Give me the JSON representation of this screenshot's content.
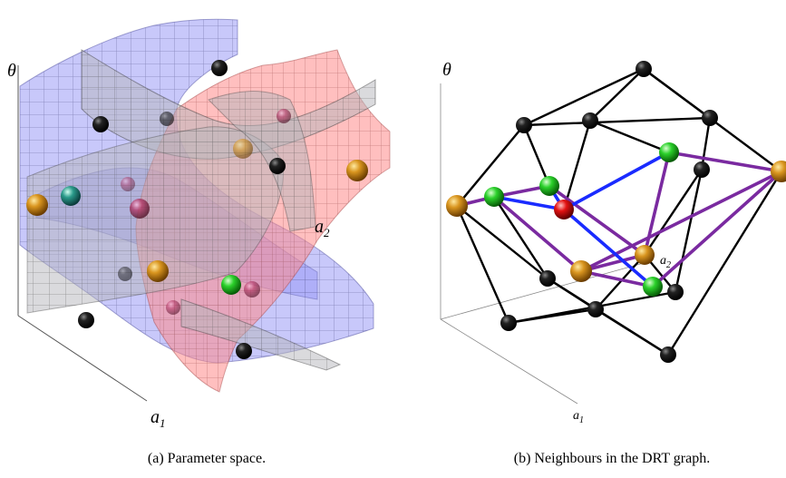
{
  "panel_a": {
    "axis_theta": "θ",
    "axis_a1": "a",
    "axis_a1_sub": "1",
    "axis_a2": "a",
    "axis_a2_sub": "2",
    "caption": "(a)  Parameter space."
  },
  "panel_b": {
    "axis_theta": "θ",
    "axis_a1": "a",
    "axis_a1_sub": "1",
    "axis_a2": "a",
    "axis_a2_sub": "2",
    "caption": "(b)  Neighbours in the DRT graph."
  },
  "colors": {
    "node_black": "#111111",
    "node_orange": "#c98a1a",
    "node_green": "#22bb22",
    "node_red": "#dd1111",
    "edge_black": "#000000",
    "edge_blue": "#1a2bff",
    "edge_purple": "#7a2aa0",
    "surface_blue": "#8c8cff",
    "surface_red": "#ff8080",
    "surface_grey": "#b0b0b8"
  }
}
